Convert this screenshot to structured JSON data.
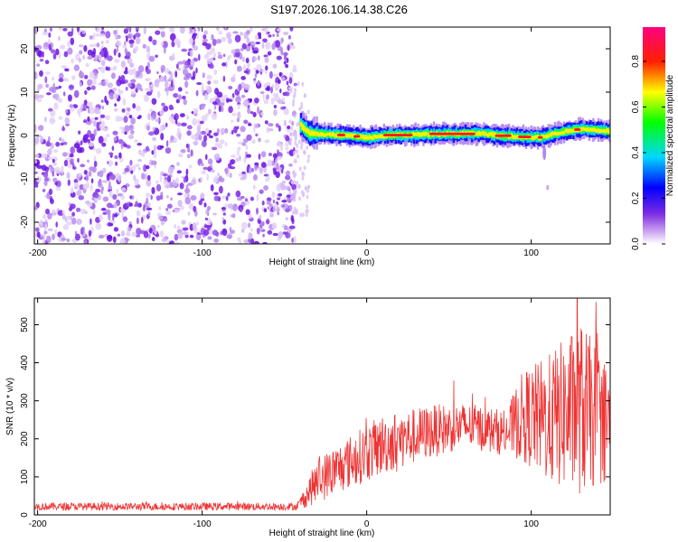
{
  "figure_title": "S197.2026.106.14.38.C26",
  "chart_data": [
    {
      "type": "heatmap",
      "title": "S197.2026.106.14.38.C26",
      "xlabel": "Height of straight line (km)",
      "ylabel": "Frequency (Hz)",
      "xlim": [
        -202,
        148
      ],
      "ylim": [
        -25,
        25
      ],
      "x_ticks": [
        -200,
        -100,
        0,
        100
      ],
      "y_ticks": [
        -20,
        -10,
        0,
        10,
        20
      ],
      "noise_region_x": [
        -202,
        -40
      ],
      "signal_band": {
        "x_range": [
          -40,
          148
        ],
        "center_frequency_hz": [
          {
            "x": -40,
            "f": 2.5
          },
          {
            "x": -35,
            "f": 0.5
          },
          {
            "x": -20,
            "f": 0.2
          },
          {
            "x": -10,
            "f": 0.0
          },
          {
            "x": 0,
            "f": -0.5
          },
          {
            "x": 10,
            "f": 0.0
          },
          {
            "x": 40,
            "f": 0.3
          },
          {
            "x": 70,
            "f": 0.5
          },
          {
            "x": 80,
            "f": 0.0
          },
          {
            "x": 105,
            "f": -0.5
          },
          {
            "x": 115,
            "f": 0.5
          },
          {
            "x": 130,
            "f": 1.5
          },
          {
            "x": 148,
            "f": 1.0
          }
        ]
      },
      "colorbar": {
        "label": "Normalized spectral amplitude",
        "range": [
          0.0,
          0.95
        ],
        "ticks": [
          "0.0",
          "0.2",
          "0.4",
          "0.6",
          "0.8"
        ],
        "tick_values": [
          0.0,
          0.2,
          0.4,
          0.6,
          0.8
        ],
        "colors": [
          "#ffffff",
          "#8a2be2",
          "#0000ff",
          "#00ffff",
          "#00ff00",
          "#ffff00",
          "#ff0000",
          "#ff00ff"
        ]
      }
    },
    {
      "type": "line",
      "title": "",
      "xlabel": "Height of straight line (km)",
      "ylabel": "SNR (10 * v/v)",
      "xlim": [
        -202,
        148
      ],
      "ylim": [
        0,
        570
      ],
      "x_ticks": [
        -200,
        -100,
        0,
        100
      ],
      "y_ticks": [
        0,
        100,
        200,
        300,
        400,
        500
      ],
      "color": "#ee3333",
      "series": [
        {
          "name": "SNR",
          "envelope": [
            {
              "x": -202,
              "mean": 22,
              "spread": 10
            },
            {
              "x": -42,
              "mean": 22,
              "spread": 10
            },
            {
              "x": -30,
              "mean": 90,
              "spread": 60
            },
            {
              "x": -10,
              "mean": 140,
              "spread": 70
            },
            {
              "x": 10,
              "mean": 185,
              "spread": 80
            },
            {
              "x": 40,
              "mean": 220,
              "spread": 70
            },
            {
              "x": 60,
              "mean": 235,
              "spread": 60
            },
            {
              "x": 85,
              "mean": 215,
              "spread": 60
            },
            {
              "x": 95,
              "mean": 260,
              "spread": 120
            },
            {
              "x": 110,
              "mean": 250,
              "spread": 170
            },
            {
              "x": 130,
              "mean": 280,
              "spread": 230
            },
            {
              "x": 148,
              "mean": 240,
              "spread": 150
            }
          ],
          "peak": {
            "x": 128,
            "y": 570
          }
        }
      ]
    }
  ]
}
